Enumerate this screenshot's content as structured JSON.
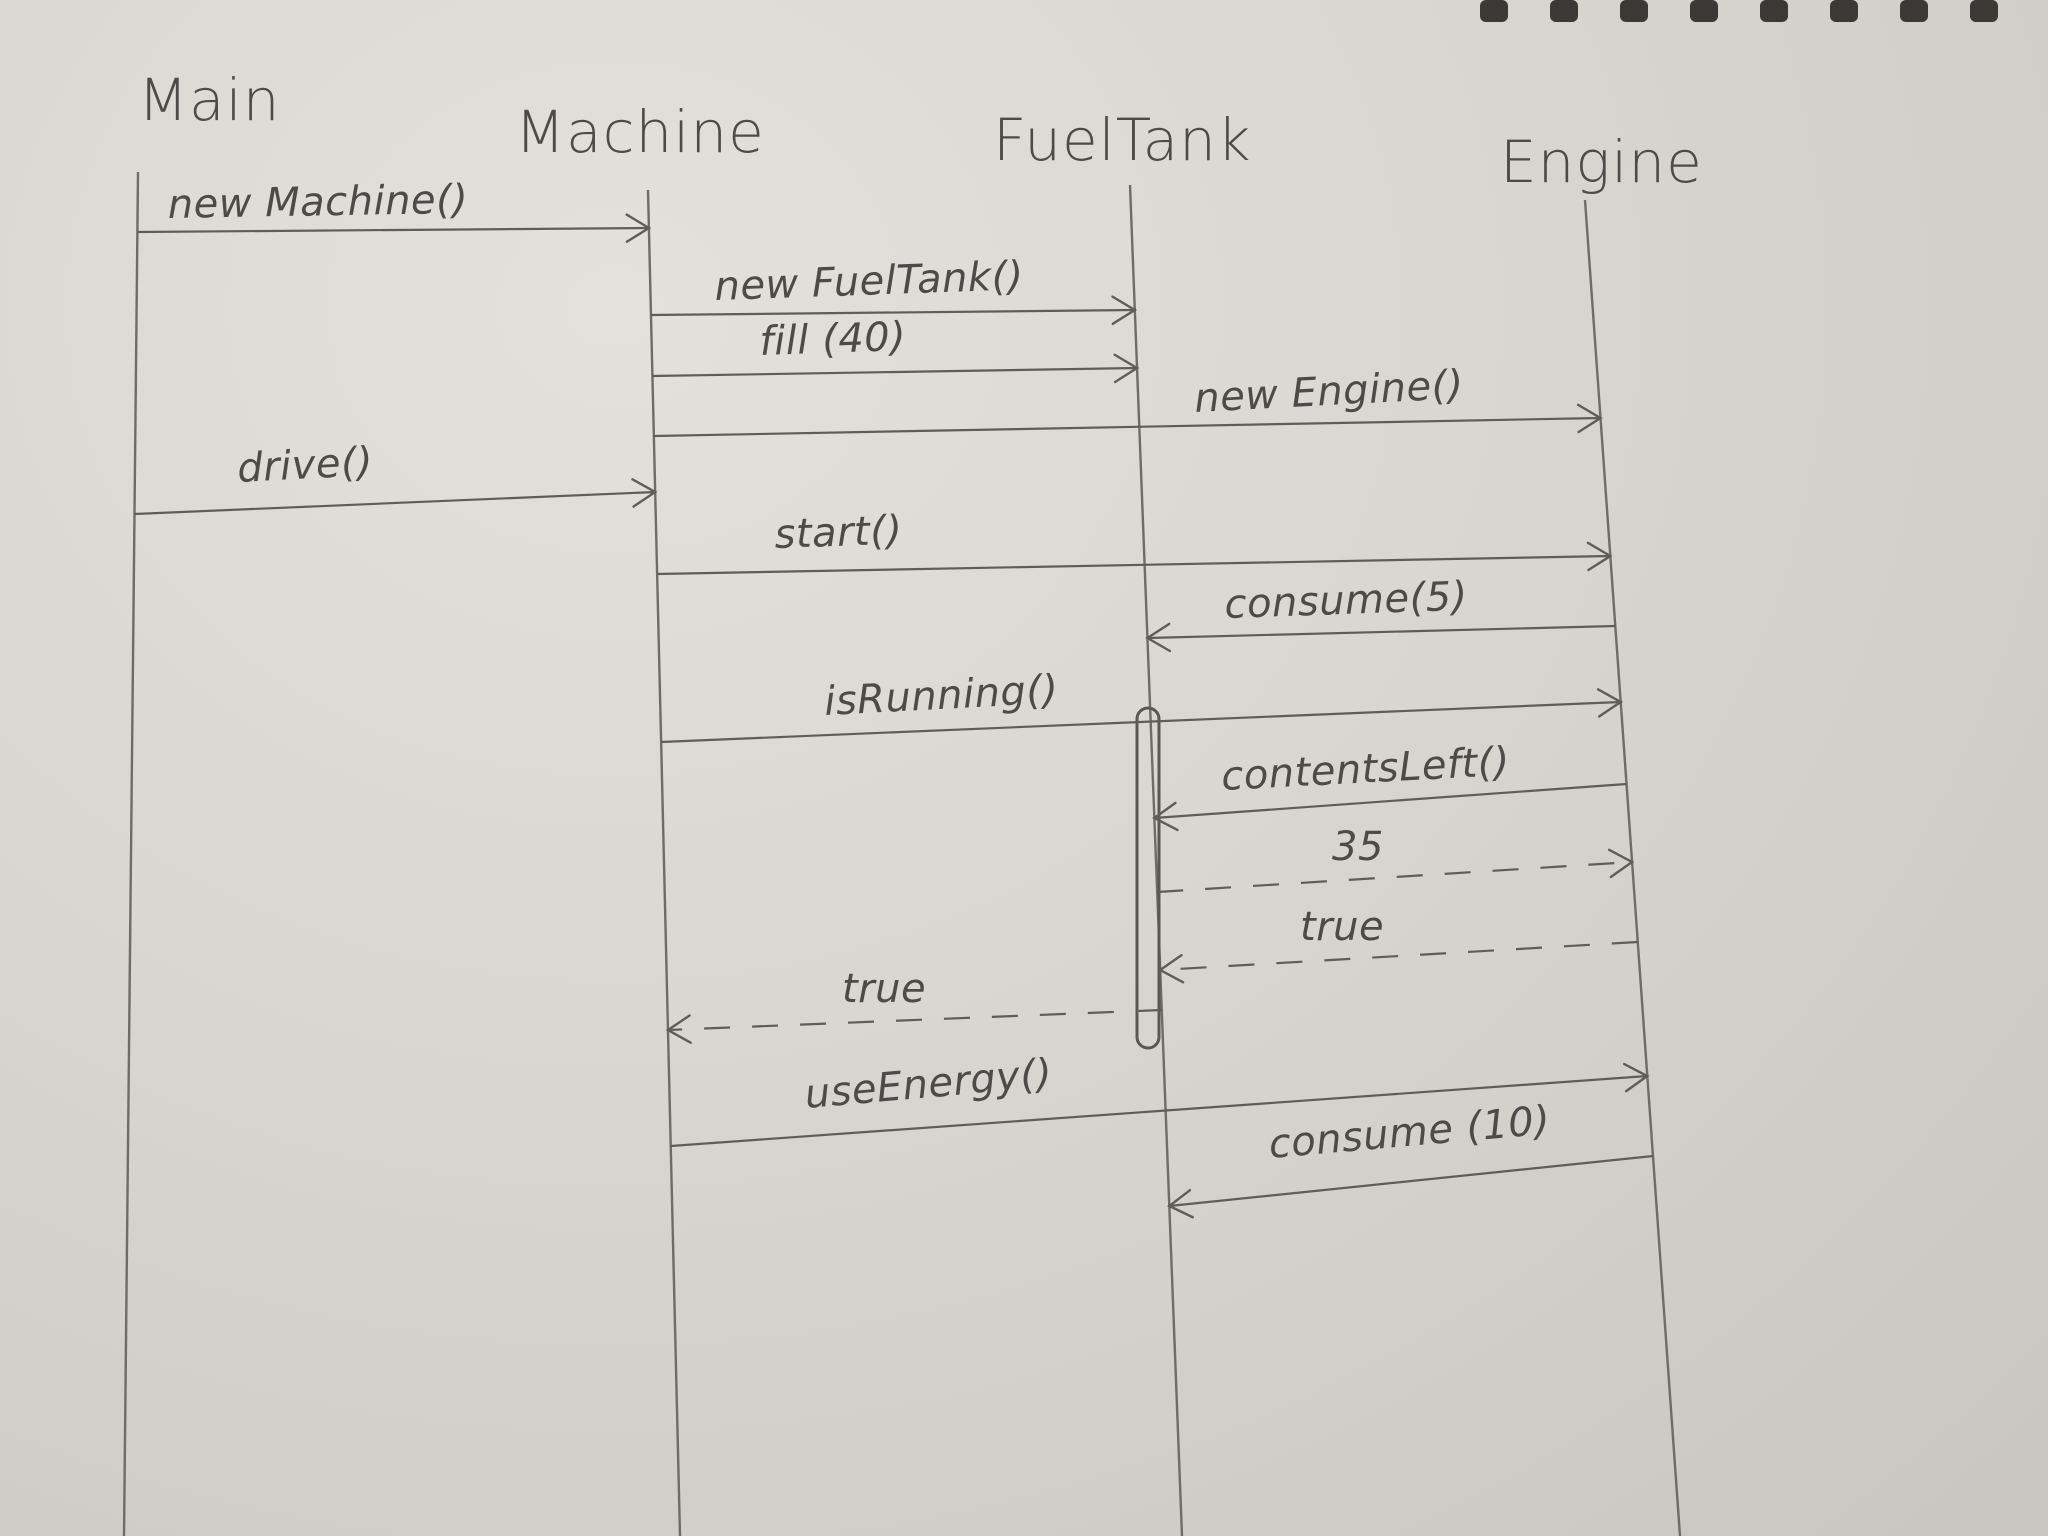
{
  "participants": [
    {
      "id": "main",
      "label": "Main"
    },
    {
      "id": "machine",
      "label": "Machine"
    },
    {
      "id": "fueltank",
      "label": "FuelTank"
    },
    {
      "id": "engine",
      "label": "Engine"
    }
  ],
  "messages": [
    {
      "label": "new Machine()",
      "from": "main",
      "to": "machine",
      "kind": "call"
    },
    {
      "label": "new FuelTank()",
      "from": "machine",
      "to": "fueltank",
      "kind": "call"
    },
    {
      "label": "fill (40)",
      "from": "machine",
      "to": "fueltank",
      "kind": "call"
    },
    {
      "label": "new Engine()",
      "from": "machine",
      "to": "engine",
      "kind": "call"
    },
    {
      "label": "drive()",
      "from": "main",
      "to": "machine",
      "kind": "call"
    },
    {
      "label": "start()",
      "from": "machine",
      "to": "engine",
      "kind": "call"
    },
    {
      "label": "consume(5)",
      "from": "engine",
      "to": "fueltank",
      "kind": "call"
    },
    {
      "label": "isRunning()",
      "from": "machine",
      "to": "engine",
      "kind": "call"
    },
    {
      "label": "contentsLeft()",
      "from": "engine",
      "to": "fueltank",
      "kind": "call"
    },
    {
      "label": "35",
      "from": "fueltank",
      "to": "engine",
      "kind": "return"
    },
    {
      "label": "true",
      "from": "engine",
      "to": "fueltank",
      "kind": "return"
    },
    {
      "label": "true",
      "from": "fueltank",
      "to": "machine",
      "kind": "return"
    },
    {
      "label": "useEnergy()",
      "from": "machine",
      "to": "engine",
      "kind": "call"
    },
    {
      "label": "consume (10)",
      "from": "engine",
      "to": "fueltank",
      "kind": "call"
    }
  ]
}
